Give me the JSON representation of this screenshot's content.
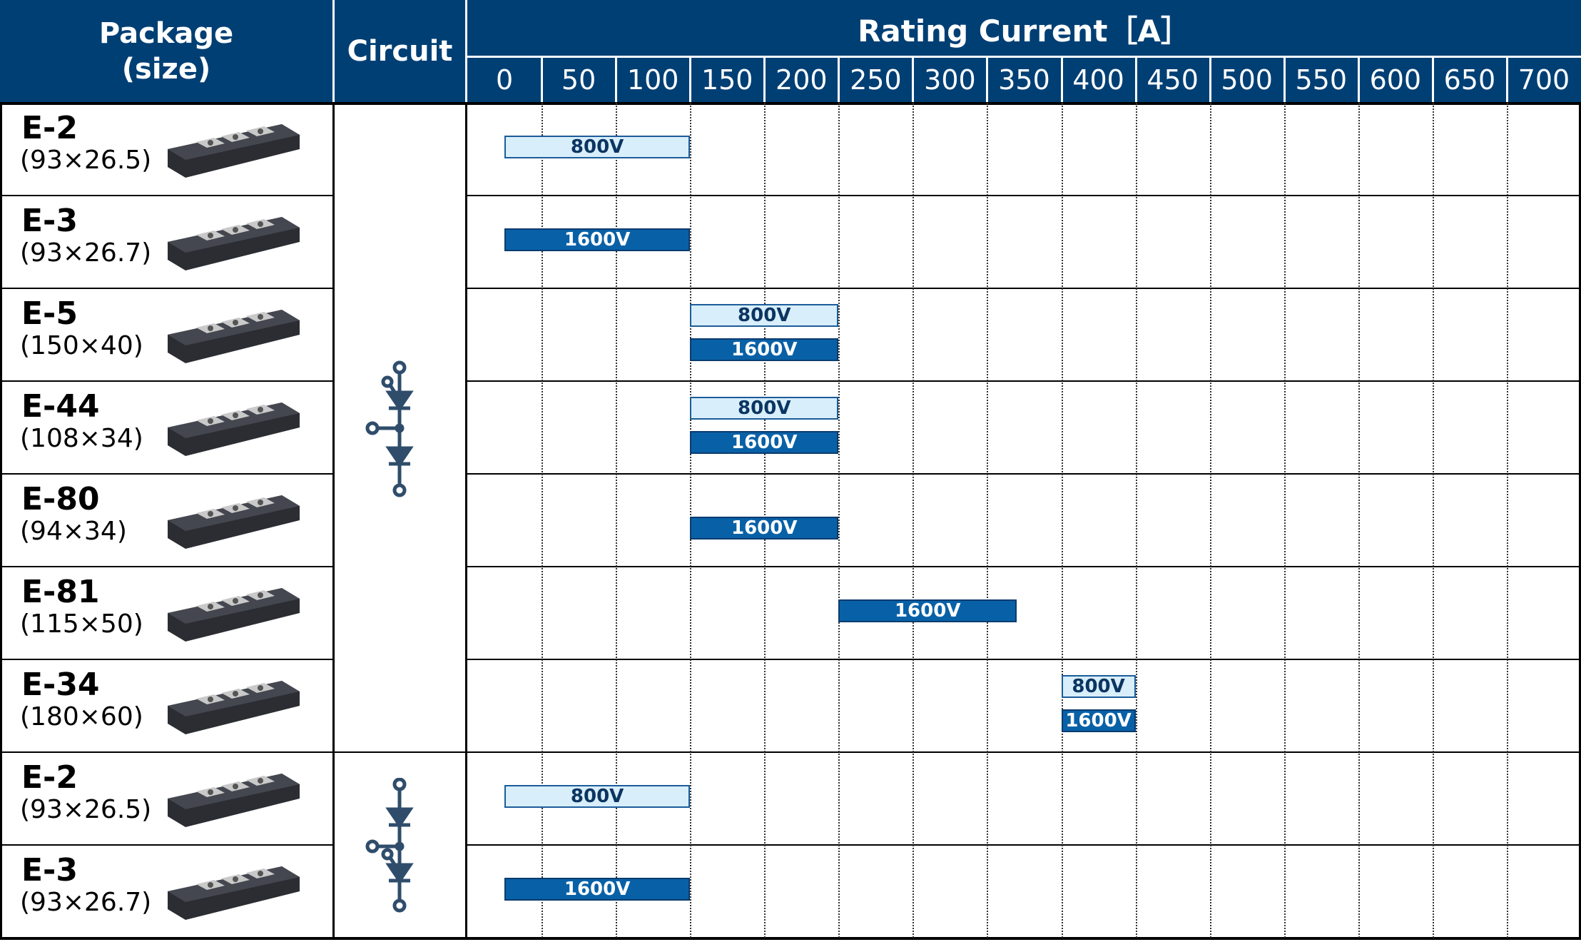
{
  "header": {
    "package_line1": "Package",
    "package_line2": "(size)",
    "circuit": "Circuit",
    "rating": "Rating Current［A］"
  },
  "colors": {
    "header_bg": "#003f74",
    "bar_800": "#d8eefb",
    "bar_1600": "#0861a7"
  },
  "icons": {
    "circuit_group_1": "thyristor-diode-module-circuit-icon",
    "circuit_group_2": "diode-thyristor-module-circuit-icon",
    "package": "power-module-package-image"
  },
  "chart_data": {
    "type": "table",
    "title": "",
    "xlabel": "Rating Current［A］",
    "ylabel": "",
    "xlim": [
      -25,
      725
    ],
    "x_ticks": [
      "0",
      "50",
      "100",
      "150",
      "200",
      "250",
      "300",
      "350",
      "400",
      "450",
      "500",
      "550",
      "600",
      "650",
      "700"
    ],
    "column_headers": [
      "Package (size)",
      "Circuit",
      "Rating Current［A］"
    ],
    "rows": [
      {
        "package": "E-2",
        "size": "(93×26.5)",
        "circuit_group": 1,
        "bars": [
          {
            "label": "800V",
            "from": 0,
            "to": 125
          }
        ]
      },
      {
        "package": "E-3",
        "size": "(93×26.7)",
        "circuit_group": 1,
        "bars": [
          {
            "label": "1600V",
            "from": 0,
            "to": 125
          }
        ]
      },
      {
        "package": "E-5",
        "size": "(150×40)",
        "circuit_group": 1,
        "bars": [
          {
            "label": "800V",
            "from": 125,
            "to": 225
          },
          {
            "label": "1600V",
            "from": 125,
            "to": 225
          }
        ]
      },
      {
        "package": "E-44",
        "size": "(108×34)",
        "circuit_group": 1,
        "bars": [
          {
            "label": "800V",
            "from": 125,
            "to": 225
          },
          {
            "label": "1600V",
            "from": 125,
            "to": 225
          }
        ]
      },
      {
        "package": "E-80",
        "size": "(94×34)",
        "circuit_group": 1,
        "bars": [
          {
            "label": "1600V",
            "from": 125,
            "to": 225
          }
        ]
      },
      {
        "package": "E-81",
        "size": "(115×50)",
        "circuit_group": 1,
        "bars": [
          {
            "label": "1600V",
            "from": 225,
            "to": 345
          }
        ]
      },
      {
        "package": "E-34",
        "size": "(180×60)",
        "circuit_group": 1,
        "bars": [
          {
            "label": "800V",
            "from": 375,
            "to": 425
          },
          {
            "label": "1600V",
            "from": 375,
            "to": 425
          }
        ]
      },
      {
        "package": "E-2",
        "size": "(93×26.5)",
        "circuit_group": 2,
        "bars": [
          {
            "label": "800V",
            "from": 0,
            "to": 125
          }
        ]
      },
      {
        "package": "E-3",
        "size": "(93×26.7)",
        "circuit_group": 2,
        "bars": [
          {
            "label": "1600V",
            "from": 0,
            "to": 125
          }
        ]
      }
    ]
  }
}
